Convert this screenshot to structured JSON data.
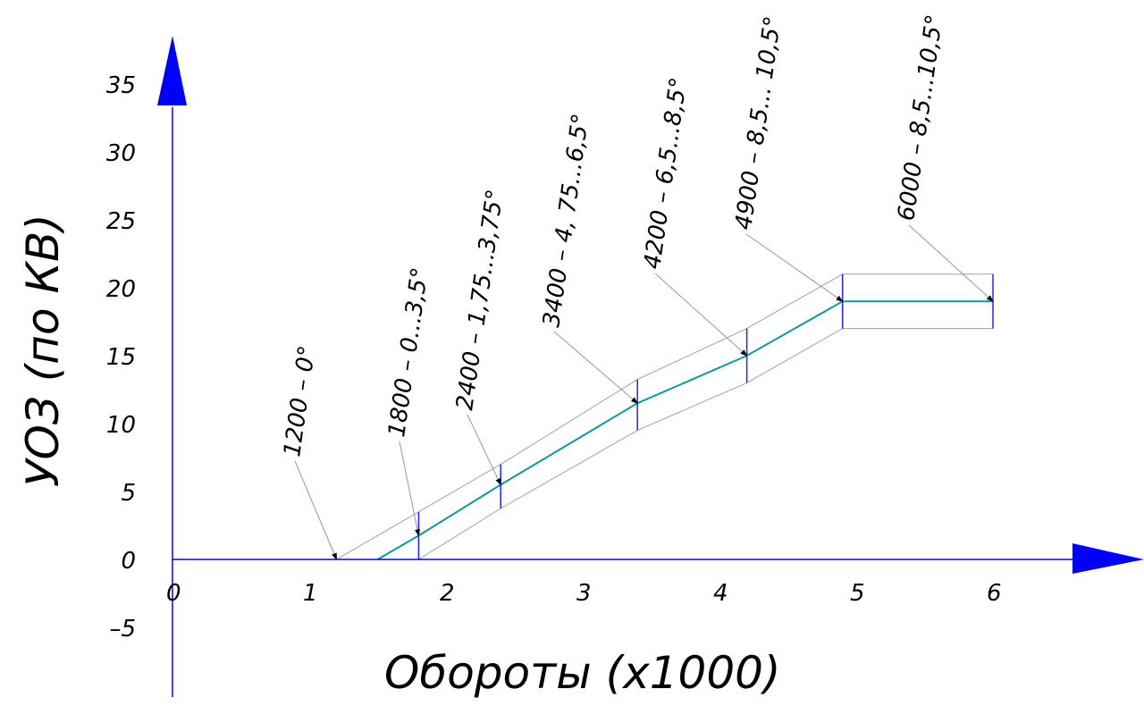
{
  "chart_data": {
    "type": "line",
    "xlabel": "Обороты (x1000)",
    "ylabel": "УОЗ (по КВ)",
    "xlim": [
      0,
      7
    ],
    "ylim": [
      -5,
      35
    ],
    "x_ticks": [
      "0",
      "1",
      "2",
      "3",
      "4",
      "5",
      "6"
    ],
    "y_ticks": [
      "35",
      "30",
      "25",
      "20",
      "15",
      "10",
      "5",
      "0",
      "–5"
    ],
    "grid": false,
    "colors": {
      "axis": "#0000ff",
      "center": "#119999",
      "band": "#a0a0a0",
      "marker": "#2222ff"
    },
    "series": [
      {
        "role": "center",
        "x": [
          1.5,
          1.8,
          2.4,
          3.4,
          4.2,
          4.9,
          6.0
        ],
        "y": [
          0,
          1.75,
          5.5,
          11.5,
          15,
          19,
          19
        ]
      },
      {
        "role": "upper",
        "x": [
          1.2,
          1.8,
          2.4,
          3.4,
          4.2,
          4.9,
          6.0
        ],
        "y": [
          0,
          3.5,
          7,
          13.25,
          17,
          21,
          21
        ]
      },
      {
        "role": "lower",
        "x": [
          1.8,
          2.4,
          3.4,
          4.2,
          4.9,
          6.0
        ],
        "y": [
          0,
          3.75,
          9.5,
          13,
          17,
          17
        ]
      }
    ],
    "annotations": [
      {
        "text": "1200 – 0°",
        "x": 1.2,
        "y": 0
      },
      {
        "text": "1800 – 0...3,5°",
        "x": 1.8,
        "y": 1.75
      },
      {
        "text": "2400 – 1,75...3,75°",
        "x": 2.4,
        "y": 5.5
      },
      {
        "text": "3400 – 4, 75...6,5°",
        "x": 3.4,
        "y": 11.5
      },
      {
        "text": "4200 – 6,5...8,5°",
        "x": 4.2,
        "y": 15
      },
      {
        "text": "4900 – 8,5... 10,5°",
        "x": 4.9,
        "y": 19
      },
      {
        "text": "6000 – 8,5...10,5°",
        "x": 6.0,
        "y": 19
      }
    ]
  }
}
